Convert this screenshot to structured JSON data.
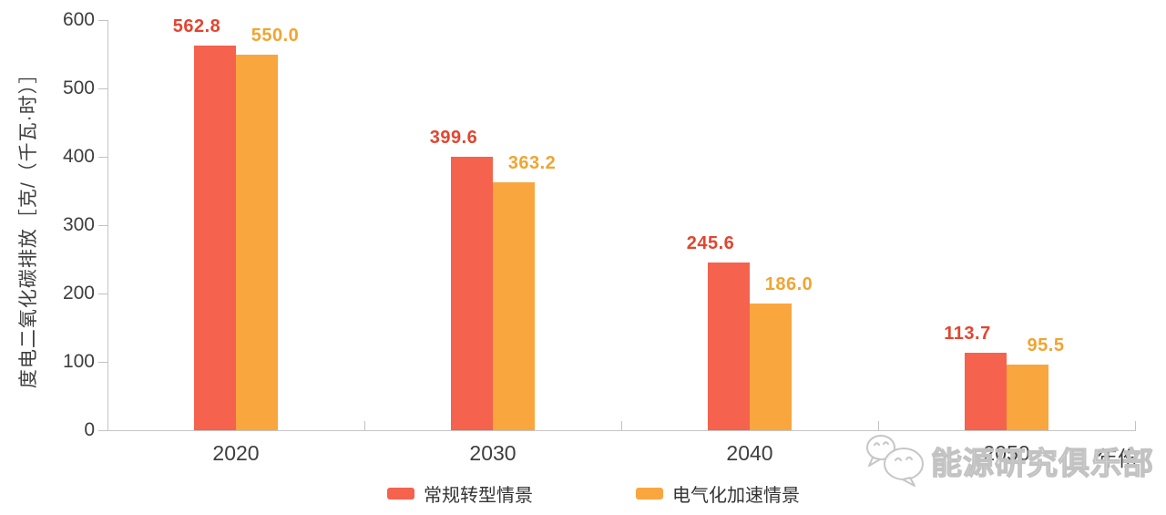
{
  "chart_data": {
    "type": "bar",
    "title": "",
    "categories": [
      "2020",
      "2030",
      "2040",
      "2050"
    ],
    "series": [
      {
        "name": "常规转型情景",
        "color": "#f5624d",
        "label_color": "#e2452f",
        "values": [
          562.8,
          399.6,
          245.6,
          113.7
        ]
      },
      {
        "name": "电气化加速情景",
        "color": "#f9a63e",
        "label_color": "#f0a532",
        "values": [
          550.0,
          363.2,
          186.0,
          95.5
        ]
      }
    ],
    "xlabel": "年份",
    "ylabel": "度电二氧化碳排放［克/（千瓦·时）］",
    "ylim": [
      0,
      600
    ],
    "yticks": [
      0,
      100,
      200,
      300,
      400,
      500,
      600
    ],
    "grid": false,
    "legend_position": "bottom",
    "value_decimals": 1
  },
  "watermark": {
    "icon": "wechat-logo",
    "text": "能源研究俱乐部"
  }
}
